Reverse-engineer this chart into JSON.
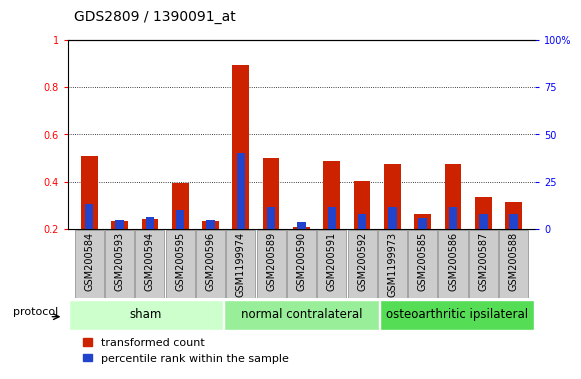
{
  "title": "GDS2809 / 1390091_at",
  "samples": [
    "GSM200584",
    "GSM200593",
    "GSM200594",
    "GSM200595",
    "GSM200596",
    "GSM1199974",
    "GSM200589",
    "GSM200590",
    "GSM200591",
    "GSM200592",
    "GSM1199973",
    "GSM200585",
    "GSM200586",
    "GSM200587",
    "GSM200588"
  ],
  "red_values": [
    0.51,
    0.235,
    0.245,
    0.395,
    0.235,
    0.895,
    0.5,
    0.21,
    0.49,
    0.405,
    0.475,
    0.265,
    0.475,
    0.335,
    0.315
  ],
  "blue_values": [
    0.305,
    0.237,
    0.25,
    0.28,
    0.24,
    0.52,
    0.295,
    0.23,
    0.295,
    0.265,
    0.295,
    0.247,
    0.295,
    0.265,
    0.265
  ],
  "groups": [
    {
      "label": "sham",
      "start": 0,
      "end": 5
    },
    {
      "label": "normal contralateral",
      "start": 5,
      "end": 10
    },
    {
      "label": "osteoarthritic ipsilateral",
      "start": 10,
      "end": 15
    }
  ],
  "group_colors": [
    "#ccffcc",
    "#99ee99",
    "#55dd55"
  ],
  "ylim_left": [
    0.2,
    1.0
  ],
  "ylim_right": [
    0,
    100
  ],
  "yticks_left": [
    0.2,
    0.4,
    0.6,
    0.8,
    1.0
  ],
  "ytick_labels_left": [
    "0.2",
    "0.4",
    "0.6",
    "0.8",
    "1"
  ],
  "yticks_right": [
    0,
    25,
    50,
    75,
    100
  ],
  "ytick_labels_right": [
    "0",
    "25",
    "50",
    "75",
    "100%"
  ],
  "bar_width": 0.55,
  "blue_bar_width": 0.28,
  "red_color": "#cc2200",
  "blue_color": "#2244cc",
  "grid_color": "#000000",
  "title_fontsize": 10,
  "tick_fontsize": 7,
  "legend_fontsize": 8,
  "group_label_fontsize": 8.5,
  "protocol_fontsize": 8,
  "sample_box_color": "#cccccc",
  "sample_box_border": "#888888"
}
